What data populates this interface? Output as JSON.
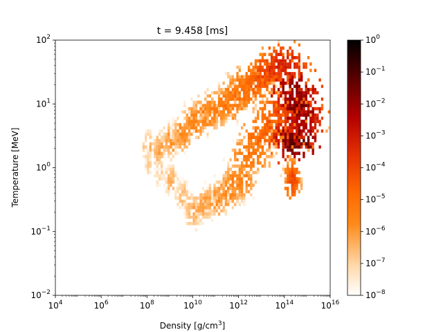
{
  "chart_data": {
    "type": "heatmap",
    "title": "t = 9.458 [ms]",
    "xlabel": "Density [g/cm",
    "xlabel_sup": "3",
    "xlabel_end": "]",
    "ylabel": "Temperature [MeV]",
    "x_scale": "log",
    "y_scale": "log",
    "xlim": [
      10000,
      10000000000000000
    ],
    "ylim": [
      0.01,
      100
    ],
    "x_ticks": [
      {
        "base": "10",
        "exp": "4",
        "value": 10000
      },
      {
        "base": "10",
        "exp": "6",
        "value": 1000000
      },
      {
        "base": "10",
        "exp": "8",
        "value": 100000000
      },
      {
        "base": "10",
        "exp": "10",
        "value": 10000000000
      },
      {
        "base": "10",
        "exp": "12",
        "value": 1000000000000
      },
      {
        "base": "10",
        "exp": "14",
        "value": 100000000000000
      },
      {
        "base": "10",
        "exp": "16",
        "value": 10000000000000000
      }
    ],
    "y_ticks": [
      {
        "base": "10",
        "exp": "−2",
        "value": 0.01
      },
      {
        "base": "10",
        "exp": "−1",
        "value": 0.1
      },
      {
        "base": "10",
        "exp": "0",
        "value": 1
      },
      {
        "base": "10",
        "exp": "1",
        "value": 10
      },
      {
        "base": "10",
        "exp": "2",
        "value": 100
      }
    ],
    "colorbar": {
      "scale": "log",
      "range": [
        1e-08,
        1
      ],
      "colormap": "gist_heat_r",
      "ticks": [
        {
          "base": "10",
          "exp": "−8",
          "value": 1e-08
        },
        {
          "base": "10",
          "exp": "−7",
          "value": 1e-07
        },
        {
          "base": "10",
          "exp": "−6",
          "value": 1e-06
        },
        {
          "base": "10",
          "exp": "−5",
          "value": 1e-05
        },
        {
          "base": "10",
          "exp": "−4",
          "value": 0.0001
        },
        {
          "base": "10",
          "exp": "−3",
          "value": 0.001
        },
        {
          "base": "10",
          "exp": "−2",
          "value": 0.01
        },
        {
          "base": "10",
          "exp": "−1",
          "value": 0.1
        },
        {
          "base": "10",
          "exp": "0",
          "value": 1
        }
      ]
    },
    "cells": [
      [
        8.0,
        0.3,
        2.0,
        -6.3
      ],
      [
        8.0,
        0.2,
        1.2,
        -6.8
      ],
      [
        8.5,
        0.3,
        0.8,
        -6.9
      ],
      [
        8.5,
        0.4,
        1.8,
        -6.1
      ],
      [
        9.0,
        0.4,
        0.6,
        -6.4
      ],
      [
        9.0,
        0.55,
        2.5,
        -5.9
      ],
      [
        9.5,
        0.5,
        0.35,
        -6.6
      ],
      [
        9.5,
        0.6,
        3.2,
        -5.7
      ],
      [
        10.0,
        0.6,
        0.2,
        -6.2
      ],
      [
        10.0,
        0.7,
        5.0,
        -5.5
      ],
      [
        10.5,
        0.7,
        0.25,
        -6.0
      ],
      [
        10.5,
        0.8,
        6.5,
        -5.3
      ],
      [
        11.0,
        0.8,
        0.3,
        -5.8
      ],
      [
        11.0,
        0.85,
        8.0,
        -5.2
      ],
      [
        11.5,
        0.9,
        0.4,
        -5.6
      ],
      [
        11.5,
        0.9,
        10.0,
        -5.0
      ],
      [
        12.0,
        1.0,
        0.6,
        -5.4
      ],
      [
        12.0,
        1.0,
        13.0,
        -4.8
      ],
      [
        12.5,
        1.1,
        1.5,
        -5.0
      ],
      [
        12.5,
        1.1,
        18.0,
        -4.5
      ],
      [
        13.0,
        1.15,
        3.0,
        -4.6
      ],
      [
        13.0,
        1.2,
        25.0,
        -4.1
      ],
      [
        13.5,
        1.2,
        5.0,
        -4.3
      ],
      [
        13.5,
        1.2,
        32.0,
        -3.6
      ],
      [
        14.0,
        1.25,
        8.0,
        -3.8
      ],
      [
        14.0,
        1.2,
        40.0,
        -3.1
      ],
      [
        14.3,
        1.3,
        3.0,
        -2.5
      ],
      [
        14.4,
        1.3,
        15.0,
        -1.7
      ],
      [
        14.5,
        1.2,
        2.5,
        -1.2
      ],
      [
        14.6,
        1.1,
        8.0,
        -1.5
      ],
      [
        14.8,
        1.0,
        5.0,
        -2.2
      ],
      [
        14.3,
        0.4,
        0.6,
        -4.0
      ]
    ]
  }
}
